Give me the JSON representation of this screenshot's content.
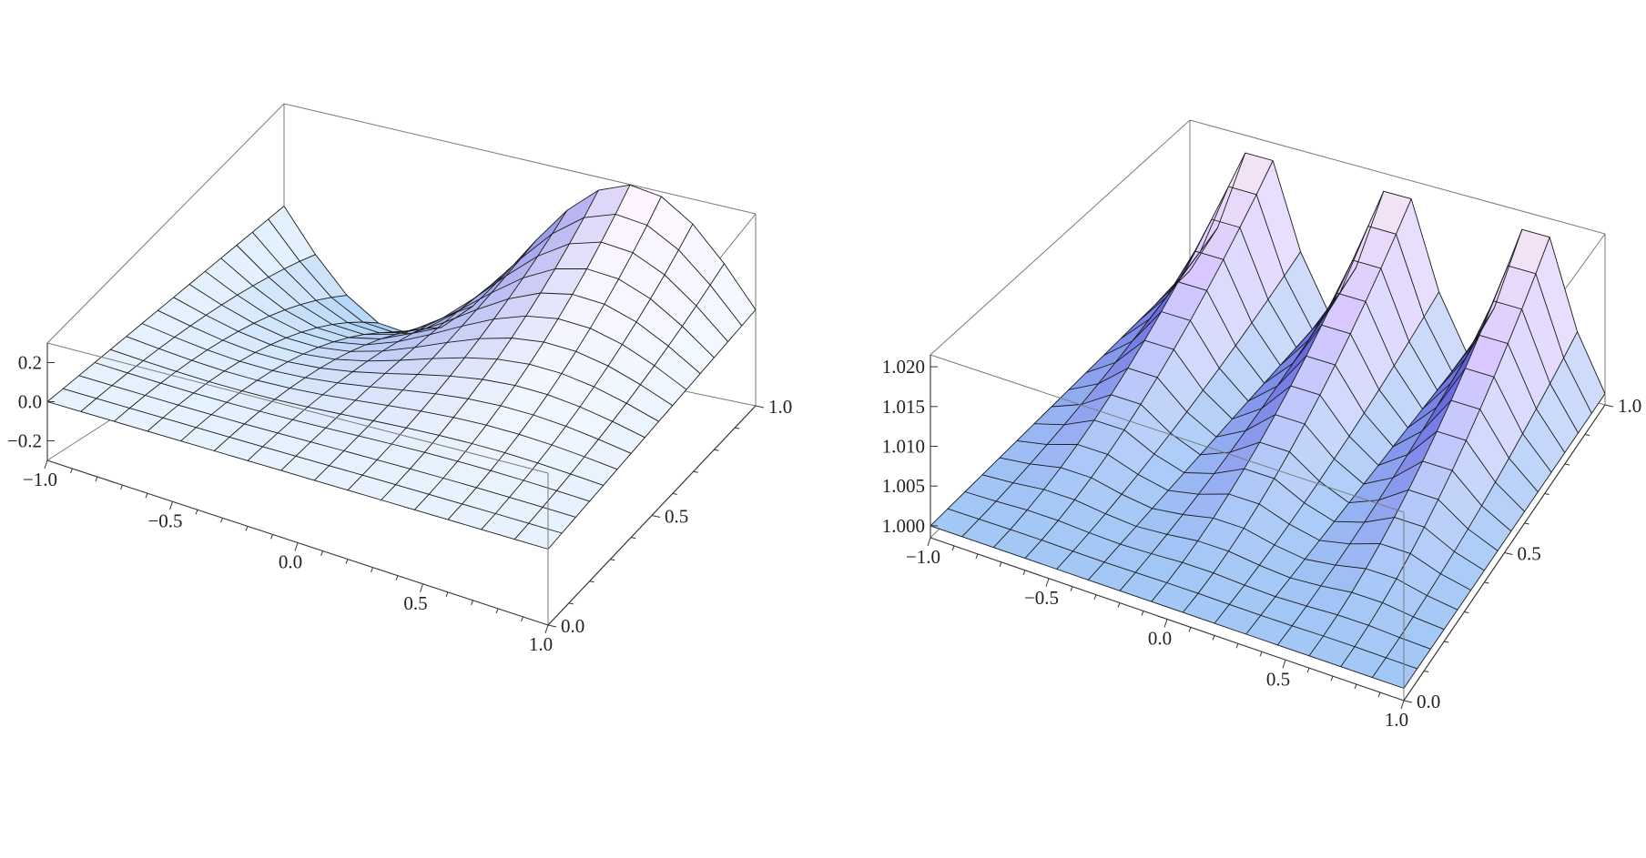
{
  "chart_data": [
    {
      "type": "surface3d",
      "title": "",
      "xlabel": "",
      "ylabel": "",
      "zlabel": "",
      "xlim": [
        -1.0,
        1.0
      ],
      "ylim": [
        0.0,
        1.0
      ],
      "zlim": [
        -0.3,
        0.3
      ],
      "x_ticks": [
        "-1.0",
        "-0.5",
        "0.0",
        "0.5",
        "1.0"
      ],
      "y_ticks": [
        "0.0",
        "0.5",
        "1.0"
      ],
      "z_ticks": [
        "-0.2",
        "0.0",
        "0.2"
      ],
      "mesh_lines": 15,
      "surface": "z = 0.3 * y^2 * sin(pi * x)",
      "colors": {
        "low": "#9cc8f5",
        "mid": "#eef6ff",
        "high": "#3f3fd6",
        "peak": "#fff4ff"
      }
    },
    {
      "type": "surface3d",
      "title": "",
      "xlabel": "",
      "ylabel": "",
      "zlabel": "",
      "xlim": [
        -1.0,
        1.0
      ],
      "ylim": [
        0.0,
        1.0
      ],
      "zlim": [
        0.9985,
        1.0215
      ],
      "x_ticks": [
        "-1.0",
        "-0.5",
        "0.0",
        "0.5",
        "1.0"
      ],
      "y_ticks": [
        "0.0",
        "0.5",
        "1.0"
      ],
      "z_ticks": [
        "1.000",
        "1.005",
        "1.010",
        "1.015",
        "1.020"
      ],
      "mesh_lines": 15,
      "surface": "z = 1 + 0.0105 * y^2 * (1 + cos(3 * pi * x))",
      "colors": {
        "low": "#9cc8f5",
        "mid": "#d8c8ff",
        "high": "#3f3fd6",
        "peak": "#fff0f0"
      }
    }
  ]
}
